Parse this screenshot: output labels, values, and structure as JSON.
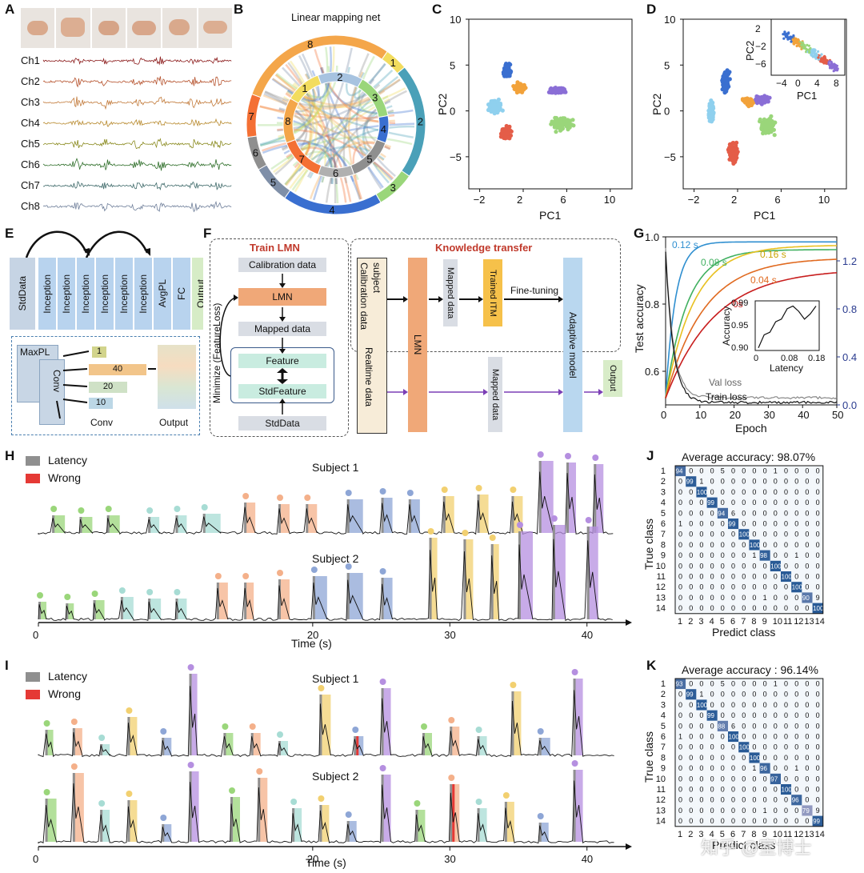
{
  "panels": [
    "A",
    "B",
    "C",
    "D",
    "E",
    "F",
    "G",
    "H",
    "I",
    "J",
    "K"
  ],
  "panelA": {
    "channels": [
      "Ch1",
      "Ch2",
      "Ch3",
      "Ch4",
      "Ch5",
      "Ch6",
      "Ch7",
      "Ch8"
    ],
    "colors": [
      "#8b1a1a",
      "#b5502a",
      "#c27a3a",
      "#b88a2e",
      "#8a8a1e",
      "#2f6f2a",
      "#3f6a6a",
      "#6f7f9a"
    ]
  },
  "panelB": {
    "title": "Linear mapping net",
    "outer_labels": [
      "8",
      "1",
      "2",
      "3",
      "4",
      "5",
      "6",
      "7"
    ],
    "inner_labels": [
      "1",
      "2",
      "3",
      "4",
      "5",
      "6",
      "7",
      "8"
    ]
  },
  "panelC": {
    "xlabel": "PC1",
    "ylabel": "PC2",
    "xticks": [
      "−2",
      "2",
      "6",
      "10"
    ],
    "yticks": [
      "10",
      "5",
      "0",
      "−5"
    ]
  },
  "panelD": {
    "xlabel": "PC1",
    "ylabel": "PC2",
    "xticks": [
      "−2",
      "2",
      "6",
      "10"
    ],
    "yticks": [
      "10",
      "5",
      "0",
      "−5"
    ],
    "inset": {
      "xlabel": "PC1",
      "ylabel": "PC2",
      "xticks": [
        "−4",
        "0",
        "4",
        "8"
      ],
      "yticks": [
        "2",
        "−2",
        "−6"
      ]
    }
  },
  "panelE": {
    "blocks": [
      "StdData",
      "Inception",
      "Inception",
      "Inception",
      "Inception",
      "Inception",
      "Inception",
      "AvgPL",
      "FC",
      "Output"
    ],
    "detail": {
      "maxpl": "MaxPL",
      "conv": "Conv",
      "filters": [
        "1",
        "40",
        "20",
        "10"
      ],
      "conv_label": "Conv",
      "output_label": "Output"
    }
  },
  "panelF": {
    "train_title": "Train LMN",
    "transfer_title": "Knowledge transfer",
    "train_steps": [
      "Calibration data",
      "LMN",
      "Mapped data",
      "Feature",
      "StdFeature",
      "StdData"
    ],
    "minimize": "Minimize (FeatureLoss)",
    "subject_box": [
      "Calibration data",
      "subject",
      "Realtime data"
    ],
    "lmn": "LMN",
    "mapped_top": "Mapped data",
    "mapped_bottom": "Mapped data",
    "trained_itm": "Trained ITM",
    "fine_tuning": "Fine-tuning",
    "adaptive": "Adaptive model",
    "output": "Output"
  },
  "panelG": {
    "xlabel": "Epoch",
    "ylabel": "Test accuracy",
    "ylabel_right": "Loss",
    "xticks": [
      "0",
      "10",
      "20",
      "30",
      "40",
      "50"
    ],
    "yticks": [
      "1.0",
      "0.8",
      "0.6"
    ],
    "yticks_right": [
      "1.2",
      "0.8",
      "0.4",
      "0.0"
    ],
    "curve_labels": [
      "0.12 s",
      "0.08 s",
      "0.16 s",
      "0.04 s",
      "0s"
    ],
    "loss_labels": [
      "Val loss",
      "Train loss"
    ],
    "inset": {
      "xlabel": "Latency",
      "ylabel": "Accuracy",
      "xticks": [
        "0",
        "0.08",
        "0.18"
      ],
      "yticks": [
        "0.99",
        "0.95",
        "0.90"
      ]
    }
  },
  "panelH": {
    "legend": [
      "Latency",
      "Wrong"
    ],
    "subjects": [
      "Subject 1",
      "Subject 2"
    ],
    "xlabel": "Time (s)",
    "xticks": [
      "0",
      "20",
      "30",
      "40"
    ]
  },
  "panelI": {
    "legend": [
      "Latency",
      "Wrong"
    ],
    "subjects": [
      "Subject 1",
      "Subject 2"
    ],
    "xlabel": "Time (s)",
    "xticks": [
      "0",
      "20",
      "30",
      "40"
    ]
  },
  "chart_data": [
    {
      "type": "heatmap",
      "panel": "J",
      "title": "Average accuracy: 98.07%",
      "xlabel": "Predict class",
      "ylabel": "True class",
      "labels": [
        "1",
        "2",
        "3",
        "4",
        "5",
        "6",
        "7",
        "8",
        "9",
        "10",
        "11",
        "12",
        "13",
        "14"
      ],
      "diagonal": [
        94,
        99,
        100,
        99,
        94,
        99,
        100,
        100,
        98,
        100,
        100,
        100,
        90,
        100
      ]
    },
    {
      "type": "heatmap",
      "panel": "K",
      "title": "Average accuracy : 96.14%",
      "xlabel": "Predict class",
      "ylabel": "True class",
      "labels": [
        "1",
        "2",
        "3",
        "4",
        "5",
        "6",
        "7",
        "8",
        "9",
        "10",
        "11",
        "12",
        "13",
        "14"
      ],
      "diagonal": [
        93,
        99,
        100,
        99,
        88,
        100,
        100,
        100,
        96,
        97,
        100,
        96,
        79,
        99
      ]
    }
  ],
  "watermark": "知乎 @室博士"
}
